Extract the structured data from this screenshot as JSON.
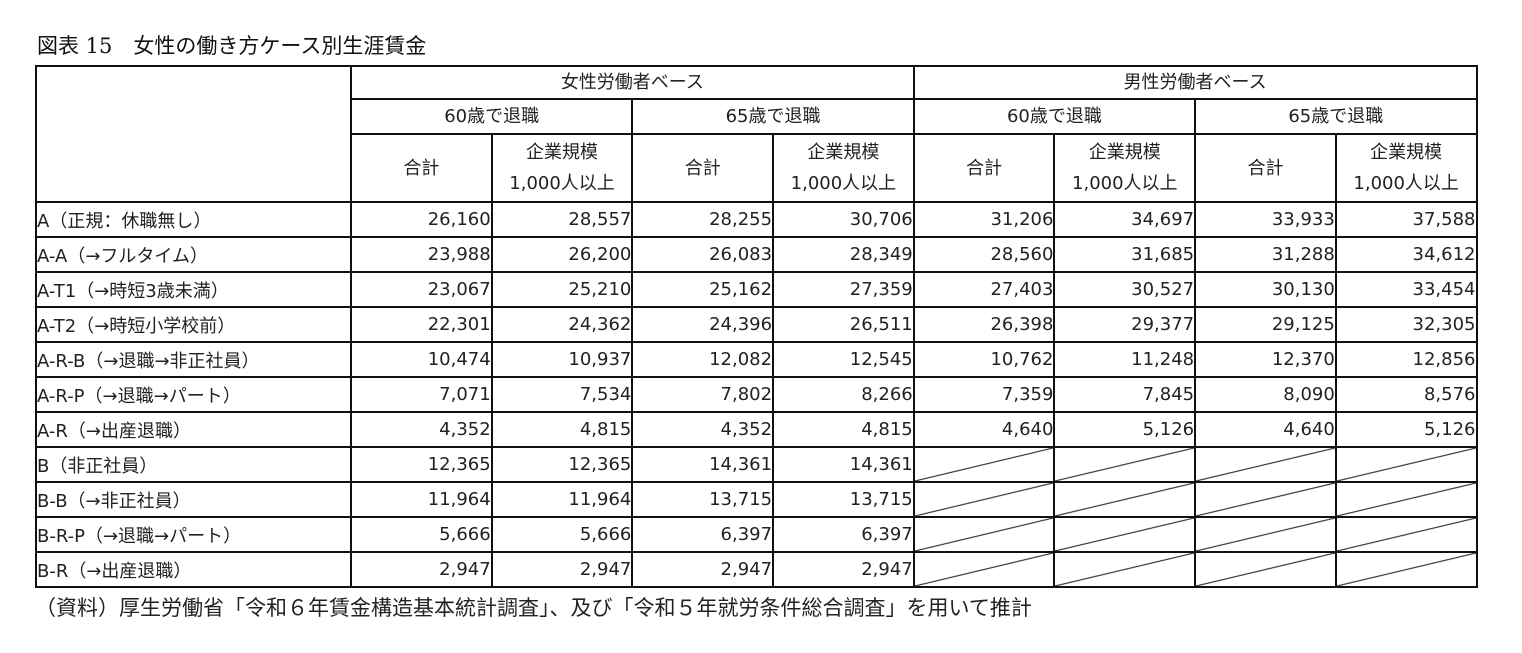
{
  "title": "図表 15　女性の働き方ケース別生涯賃金",
  "header": {
    "groups": [
      "女性労働者ベース",
      "男性労働者ベース"
    ],
    "retire": [
      "60歳で退職",
      "65歳で退職",
      "60歳で退職",
      "65歳で退職"
    ],
    "total": "合計",
    "large_line1": "企業規模",
    "large_line2": "1,000人以上"
  },
  "rows": [
    {
      "label": "A（正規：休職無し）",
      "values": [
        "26,160",
        "28,557",
        "28,255",
        "30,706",
        "31,206",
        "34,697",
        "33,933",
        "37,588"
      ]
    },
    {
      "label": "A-A（→フルタイム）",
      "values": [
        "23,988",
        "26,200",
        "26,083",
        "28,349",
        "28,560",
        "31,685",
        "31,288",
        "34,612"
      ]
    },
    {
      "label": "A-T1（→時短3歳未満）",
      "values": [
        "23,067",
        "25,210",
        "25,162",
        "27,359",
        "27,403",
        "30,527",
        "30,130",
        "33,454"
      ]
    },
    {
      "label": "A-T2（→時短小学校前）",
      "values": [
        "22,301",
        "24,362",
        "24,396",
        "26,511",
        "26,398",
        "29,377",
        "29,125",
        "32,305"
      ]
    },
    {
      "label": "A-R-B（→退職→非正社員）",
      "values": [
        "10,474",
        "10,937",
        "12,082",
        "12,545",
        "10,762",
        "11,248",
        "12,370",
        "12,856"
      ]
    },
    {
      "label": "A-R-P（→退職→パート）",
      "values": [
        "7,071",
        "7,534",
        "7,802",
        "8,266",
        "7,359",
        "7,845",
        "8,090",
        "8,576"
      ]
    },
    {
      "label": "A-R（→出産退職）",
      "values": [
        "4,352",
        "4,815",
        "4,352",
        "4,815",
        "4,640",
        "5,126",
        "4,640",
        "5,126"
      ]
    },
    {
      "label": "B（非正社員）",
      "values": [
        "12,365",
        "12,365",
        "14,361",
        "14,361",
        null,
        null,
        null,
        null
      ]
    },
    {
      "label": "B-B（→非正社員）",
      "values": [
        "11,964",
        "11,964",
        "13,715",
        "13,715",
        null,
        null,
        null,
        null
      ]
    },
    {
      "label": "B-R-P（→退職→パート）",
      "values": [
        "5,666",
        "5,666",
        "6,397",
        "6,397",
        null,
        null,
        null,
        null
      ]
    },
    {
      "label": "B-R（→出産退職）",
      "values": [
        "2,947",
        "2,947",
        "2,947",
        "2,947",
        null,
        null,
        null,
        null
      ]
    }
  ],
  "note": "（資料）厚生労働省「令和６年賃金構造基本統計調査」、及び「令和５年就労条件総合調査」を用いて推計"
}
